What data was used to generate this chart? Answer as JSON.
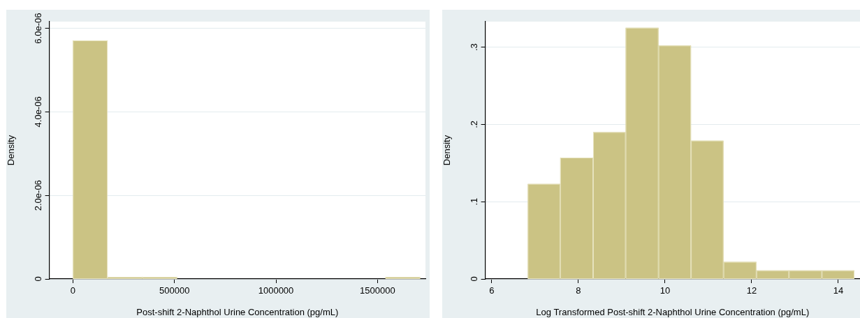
{
  "chart_data": [
    {
      "type": "histogram",
      "xlabel": "Post-shift 2-Naphthol Urine Concentration (pg/mL)",
      "ylabel": "Density",
      "color": "#cbc384",
      "bins": [
        0,
        171000,
        342000,
        513000,
        684000,
        855000,
        1026000,
        1197000,
        1368000,
        1539000,
        1710000
      ],
      "values": [
        5.71e-06,
        5e-08,
        5e-08,
        0,
        0,
        0,
        0,
        0,
        0,
        5e-08
      ],
      "xlim": [
        -116000,
        1736000
      ],
      "xticks": [
        0,
        500000,
        1000000,
        1500000
      ],
      "ylim": [
        0,
        6.16e-06
      ],
      "yticks": [
        0,
        {
          "value": 2e-06,
          "label": "2.0e-06"
        },
        {
          "value": 4e-06,
          "label": "4.0e-06"
        },
        {
          "value": 6e-06,
          "label": "6.0e-06"
        }
      ],
      "grid": "y"
    },
    {
      "type": "histogram",
      "xlabel": "Log Transformed Post-shift 2-Naphthol Urine Concentration (pg/mL)",
      "ylabel": "Density",
      "color": "#cbc384",
      "bins": [
        6.83,
        7.58,
        8.34,
        9.09,
        9.85,
        10.6,
        11.35,
        12.11,
        12.86,
        13.62,
        14.37
      ],
      "values": [
        0.123,
        0.157,
        0.19,
        0.325,
        0.302,
        0.179,
        0.022,
        0.011,
        0.011,
        0.011
      ],
      "xlim": [
        5.85,
        14.5
      ],
      "xticks": [
        6,
        8,
        10,
        12,
        14
      ],
      "ylim": [
        0,
        0.333
      ],
      "yticks": [
        0,
        {
          "value": 0.1,
          "label": ".1"
        },
        {
          "value": 0.2,
          "label": ".2"
        },
        {
          "value": 0.3,
          "label": ".3"
        }
      ],
      "grid": "y"
    }
  ]
}
